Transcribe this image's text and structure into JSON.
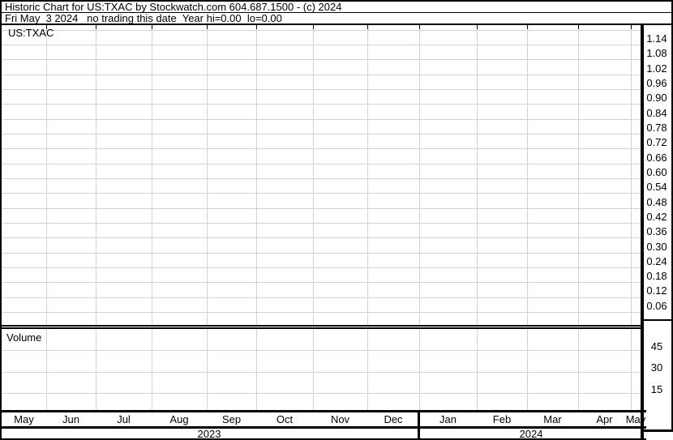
{
  "header": {
    "title_line": "Historic Chart for US:TXAC by Stockwatch.com 604.687.1500 - (c) 2024",
    "status_line": "Fri May  3 2024   no trading this date  Year hi=0.00  lo=0.00"
  },
  "price_pane": {
    "symbol_label": "US:TXAC"
  },
  "volume_pane": {
    "label": "Volume"
  },
  "price_axis": {
    "labels": [
      "1.14",
      "1.08",
      "1.02",
      "0.96",
      "0.90",
      "0.84",
      "0.78",
      "0.72",
      "0.66",
      "0.60",
      "0.54",
      "0.48",
      "0.42",
      "0.36",
      "0.30",
      "0.24",
      "0.18",
      "0.12",
      "0.06"
    ]
  },
  "volume_axis": {
    "labels": [
      "45",
      "30",
      "15"
    ]
  },
  "x_axis": {
    "months": [
      "May",
      "Jun",
      "Jul",
      "Aug",
      "Sep",
      "Oct",
      "Nov",
      "Dec",
      "Jan",
      "Feb",
      "Mar",
      "Apr",
      "May"
    ],
    "years": [
      "2023",
      "2024"
    ]
  },
  "colors": {
    "background": "#ffffff",
    "text": "#000000",
    "border": "#000000",
    "grid": "#d3d3d3"
  },
  "chart_data": {
    "type": "line",
    "title": "Historic Chart for US:TXAC by Stockwatch.com 604.687.1500 - (c) 2024",
    "subtitle": "Fri May 3 2024  no trading this date  Year hi=0.00  lo=0.00",
    "x": [],
    "series": [
      {
        "name": "US:TXAC price",
        "values": []
      },
      {
        "name": "Volume",
        "values": []
      }
    ],
    "note": "Chart is empty - no trading on this date, year hi=0.00 lo=0.00",
    "grid": true,
    "legend_position": "none",
    "xlabel": "",
    "ylabel": "",
    "x_axis": {
      "months": [
        "May",
        "Jun",
        "Jul",
        "Aug",
        "Sep",
        "Oct",
        "Nov",
        "Dec",
        "Jan",
        "Feb",
        "Mar",
        "Apr",
        "May"
      ],
      "year_sections": [
        {
          "year": "2023",
          "months": [
            "May",
            "Jun",
            "Jul",
            "Aug",
            "Sep",
            "Oct",
            "Nov",
            "Dec"
          ]
        },
        {
          "year": "2024",
          "months": [
            "Jan",
            "Feb",
            "Mar",
            "Apr",
            "May"
          ]
        }
      ]
    },
    "price_axis_ticks": [
      1.14,
      1.08,
      1.02,
      0.96,
      0.9,
      0.84,
      0.78,
      0.72,
      0.66,
      0.6,
      0.54,
      0.48,
      0.42,
      0.36,
      0.3,
      0.24,
      0.18,
      0.12,
      0.06
    ],
    "price_axis_range": [
      0.0,
      1.2
    ],
    "volume_axis_ticks": [
      45,
      30,
      15
    ],
    "volume_axis_range": [
      0,
      55
    ]
  }
}
